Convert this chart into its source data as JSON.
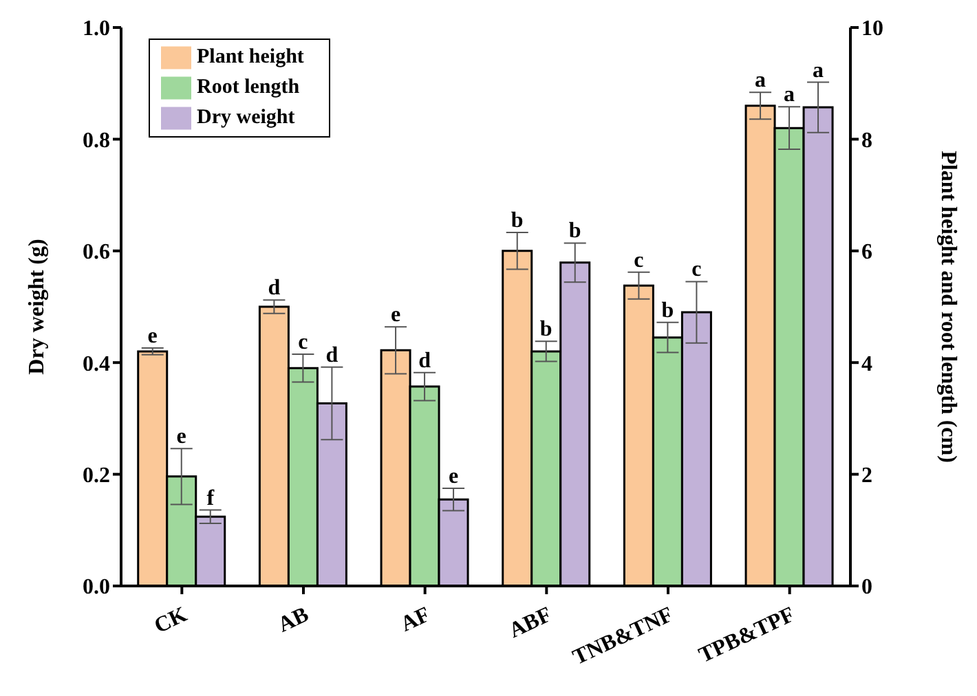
{
  "chart_data": {
    "type": "bar",
    "ylabel": "Dry weight (g)",
    "y2label": "Plant height and root length (cm)",
    "categories": [
      "CK",
      "AB",
      "AF",
      "ABF",
      "TNB&TNF",
      "TPB&TPF"
    ],
    "series": [
      {
        "name": "Plant height",
        "color": "#fbc898",
        "axis": "y2",
        "values": [
          4.2,
          5.0,
          4.22,
          6.0,
          5.38,
          8.6
        ],
        "errors": [
          0.06,
          0.12,
          0.42,
          0.33,
          0.24,
          0.24
        ],
        "value_labels": [
          "e",
          "d",
          "e",
          "b",
          "c",
          "a"
        ]
      },
      {
        "name": "Root length",
        "color": "#9fd89c",
        "axis": "y2",
        "values": [
          1.96,
          3.9,
          3.57,
          4.2,
          4.45,
          8.2
        ],
        "errors": [
          0.5,
          0.25,
          0.25,
          0.18,
          0.27,
          0.38
        ],
        "value_labels": [
          "e",
          "c",
          "d",
          "b",
          "b",
          "a"
        ]
      },
      {
        "name": "Dry weight",
        "color": "#c2b2d8",
        "values": [
          0.124,
          0.327,
          0.155,
          0.579,
          0.49,
          0.857
        ],
        "errors": [
          0.012,
          0.065,
          0.02,
          0.035,
          0.055,
          0.045
        ],
        "value_labels": [
          "f",
          "d",
          "e",
          "b",
          "c",
          "a"
        ]
      }
    ],
    "ylim": [
      0,
      1
    ],
    "yticks": [
      {
        "value": 0,
        "label": "0.0"
      },
      0.2,
      0.4,
      0.6,
      0.8,
      {
        "value": 1,
        "label": "1.0"
      }
    ],
    "y2lim": [
      0,
      10
    ],
    "y2ticks": [
      0,
      2,
      4,
      6,
      8,
      10
    ],
    "grid": false,
    "legend": "top left"
  }
}
